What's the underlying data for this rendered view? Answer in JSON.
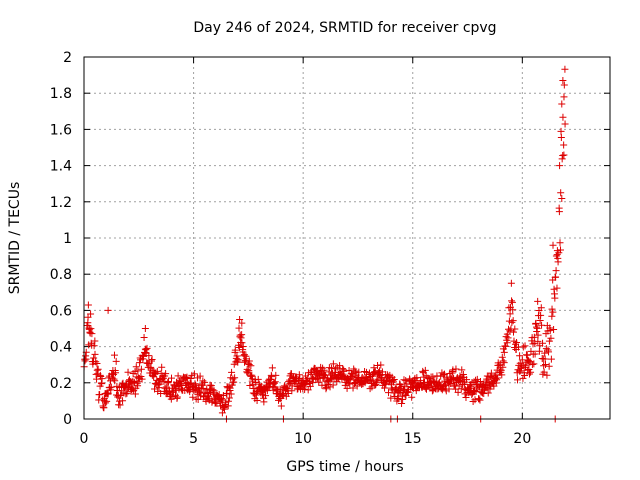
{
  "chart_data": {
    "type": "scatter",
    "title": "Day 246 of 2024, SRMTID for receiver cpvg",
    "xlabel": "GPS time / hours",
    "ylabel": "SRMTID / TECUs",
    "xlim": [
      0,
      24
    ],
    "ylim": [
      0,
      2
    ],
    "xticks": [
      0,
      5,
      10,
      15,
      20
    ],
    "yticks": [
      0,
      0.2,
      0.4,
      0.6,
      0.8,
      1,
      1.2,
      1.4,
      1.6,
      1.8,
      2
    ],
    "ytick_labels": [
      "0",
      "0.2",
      "0.4",
      "0.6",
      "0.8",
      "1",
      "1.2",
      "1.4",
      "1.6",
      "1.8",
      "2"
    ],
    "grid": true,
    "marker": "+",
    "color": "#dd0000",
    "profile": [
      [
        0.0,
        0.3
      ],
      [
        0.15,
        0.5
      ],
      [
        0.3,
        0.42
      ],
      [
        0.5,
        0.35
      ],
      [
        0.7,
        0.18
      ],
      [
        0.9,
        0.08
      ],
      [
        1.1,
        0.15
      ],
      [
        1.4,
        0.28
      ],
      [
        1.6,
        0.1
      ],
      [
        2.0,
        0.2
      ],
      [
        2.5,
        0.25
      ],
      [
        2.8,
        0.38
      ],
      [
        3.2,
        0.22
      ],
      [
        3.6,
        0.2
      ],
      [
        4.0,
        0.15
      ],
      [
        4.5,
        0.2
      ],
      [
        5.0,
        0.18
      ],
      [
        5.5,
        0.16
      ],
      [
        6.0,
        0.14
      ],
      [
        6.4,
        0.08
      ],
      [
        6.8,
        0.22
      ],
      [
        7.1,
        0.45
      ],
      [
        7.4,
        0.28
      ],
      [
        7.8,
        0.18
      ],
      [
        8.2,
        0.15
      ],
      [
        8.6,
        0.22
      ],
      [
        9.0,
        0.12
      ],
      [
        9.5,
        0.22
      ],
      [
        10.0,
        0.2
      ],
      [
        10.5,
        0.24
      ],
      [
        11.0,
        0.22
      ],
      [
        11.5,
        0.25
      ],
      [
        12.0,
        0.22
      ],
      [
        12.5,
        0.23
      ],
      [
        13.0,
        0.21
      ],
      [
        13.5,
        0.24
      ],
      [
        14.0,
        0.18
      ],
      [
        14.5,
        0.15
      ],
      [
        15.0,
        0.17
      ],
      [
        15.5,
        0.22
      ],
      [
        16.0,
        0.18
      ],
      [
        16.5,
        0.2
      ],
      [
        17.0,
        0.22
      ],
      [
        17.5,
        0.18
      ],
      [
        18.0,
        0.15
      ],
      [
        18.5,
        0.2
      ],
      [
        19.0,
        0.26
      ],
      [
        19.3,
        0.45
      ],
      [
        19.5,
        0.62
      ],
      [
        19.8,
        0.28
      ],
      [
        20.2,
        0.32
      ],
      [
        20.5,
        0.4
      ],
      [
        20.8,
        0.52
      ],
      [
        21.0,
        0.35
      ],
      [
        21.3,
        0.45
      ],
      [
        21.5,
        0.75
      ],
      [
        21.7,
        1.05
      ],
      [
        21.85,
        1.6
      ],
      [
        21.95,
        1.85
      ]
    ],
    "spread": [
      [
        0.0,
        0.12
      ],
      [
        0.5,
        0.12
      ],
      [
        1.0,
        0.1
      ],
      [
        3.0,
        0.1
      ],
      [
        6.5,
        0.07
      ],
      [
        7.2,
        0.12
      ],
      [
        8.0,
        0.07
      ],
      [
        17.0,
        0.07
      ],
      [
        19.0,
        0.08
      ],
      [
        19.5,
        0.14
      ],
      [
        20.5,
        0.14
      ],
      [
        21.5,
        0.25
      ],
      [
        21.95,
        0.4
      ]
    ],
    "spikes": [
      [
        0.2,
        0.63
      ],
      [
        0.3,
        0.58
      ],
      [
        1.1,
        0.6
      ],
      [
        2.8,
        0.5
      ],
      [
        7.1,
        0.55
      ],
      [
        7.2,
        0.53
      ],
      [
        19.5,
        0.75
      ],
      [
        20.7,
        0.65
      ],
      [
        21.4,
        0.96
      ],
      [
        21.6,
        0.93
      ],
      [
        21.7,
        1.4
      ],
      [
        21.75,
        1.25
      ],
      [
        21.8,
        1.74
      ],
      [
        21.85,
        1.87
      ],
      [
        21.9,
        1.78
      ],
      [
        21.95,
        1.63
      ]
    ],
    "zeros": [
      6.5,
      9.1,
      14.0,
      14.3,
      18.1,
      21.5
    ],
    "n_points": 1100,
    "seed": 246
  }
}
